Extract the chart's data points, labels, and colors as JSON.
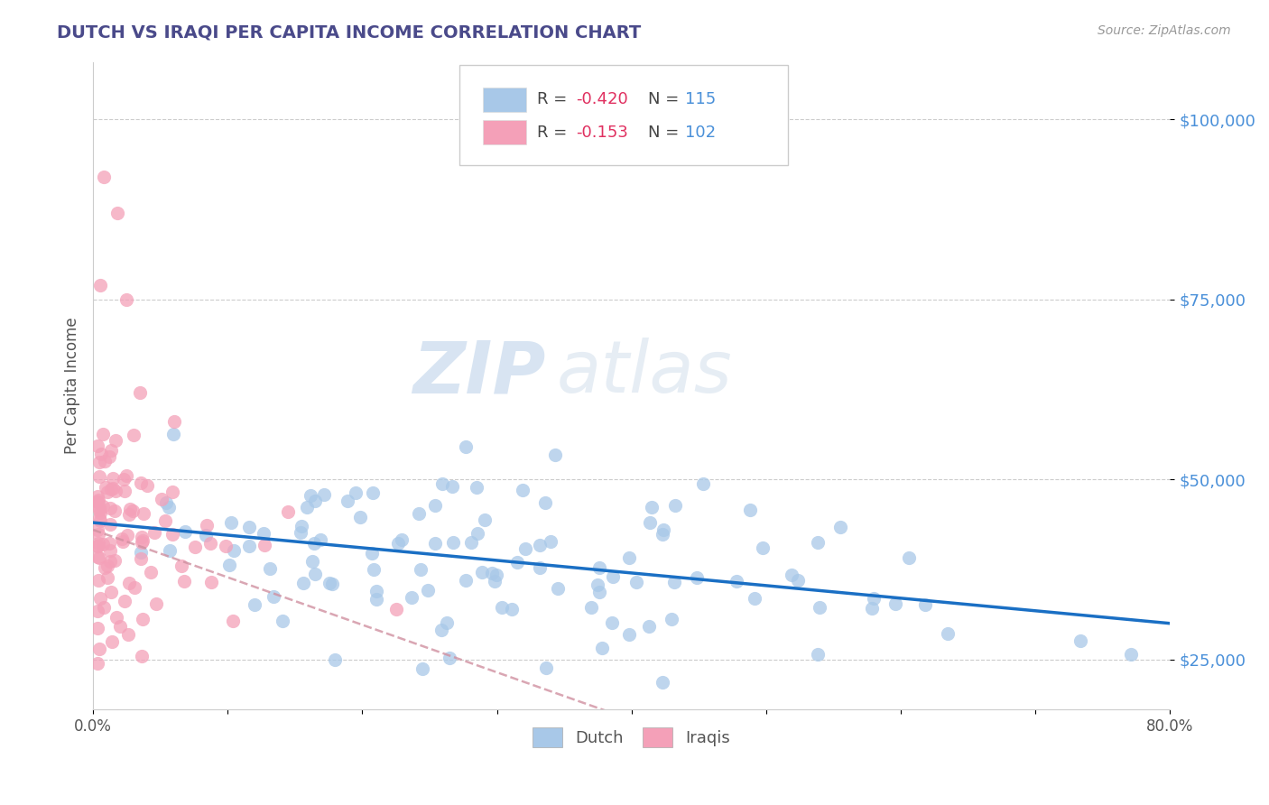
{
  "title": "DUTCH VS IRAQI PER CAPITA INCOME CORRELATION CHART",
  "source_text": "Source: ZipAtlas.com",
  "ylabel": "Per Capita Income",
  "watermark": "ZIPatlas",
  "xlim": [
    0.0,
    0.8
  ],
  "ylim": [
    18000,
    108000
  ],
  "xticks": [
    0.0,
    0.1,
    0.2,
    0.3,
    0.4,
    0.5,
    0.6,
    0.7,
    0.8
  ],
  "xticklabels": [
    "0.0%",
    "",
    "",
    "",
    "",
    "",
    "",
    "",
    "80.0%"
  ],
  "yticks": [
    25000,
    50000,
    75000,
    100000
  ],
  "yticklabels": [
    "$25,000",
    "$50,000",
    "$75,000",
    "$100,000"
  ],
  "dutch_color": "#a8c8e8",
  "iraqi_color": "#f4a0b8",
  "dutch_line_color": "#1a6fc4",
  "iraqi_line_color": "#e07090",
  "dutch_R": -0.42,
  "dutch_N": 115,
  "iraqi_R": -0.153,
  "iraqi_N": 102,
  "background_color": "#ffffff",
  "grid_color": "#cccccc",
  "title_color": "#4a4a8a",
  "ytick_color": "#4a90d9",
  "seed": 42
}
